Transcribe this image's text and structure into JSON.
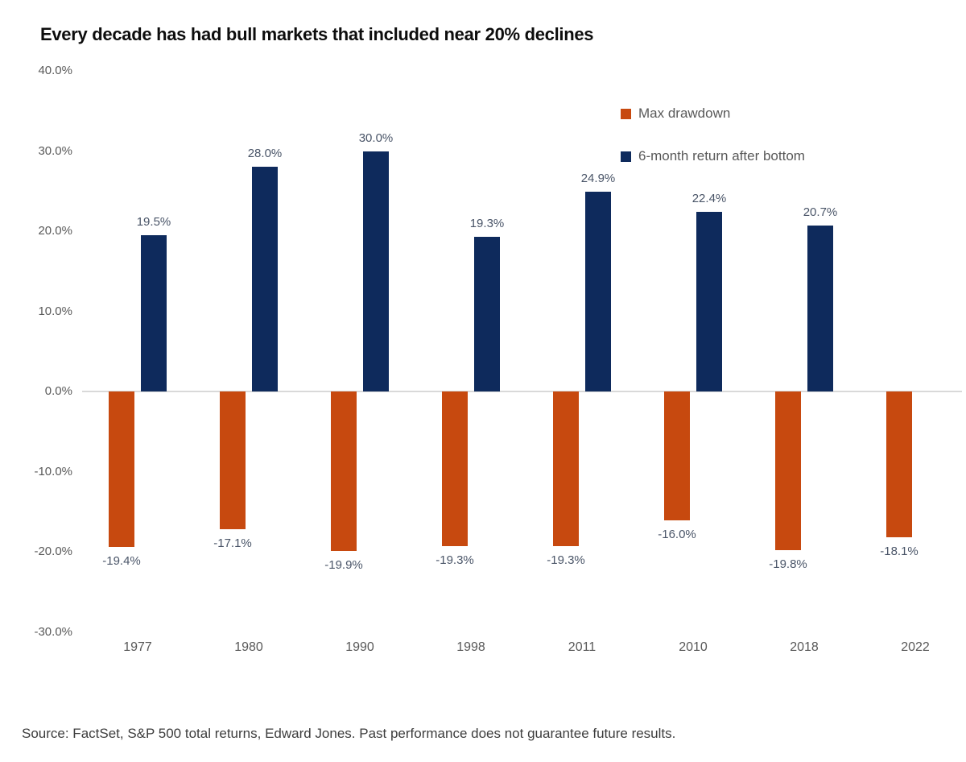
{
  "title": "Every decade has had bull markets that included near 20% declines",
  "source": "Source: FactSet, S&P 500 total returns, Edward Jones. Past performance does not guarantee future results.",
  "legend": {
    "items": [
      {
        "label": "Max drawdown",
        "color": "#c7490f"
      },
      {
        "label": "6-month return after bottom",
        "color": "#0e2a5c"
      }
    ]
  },
  "chart_data": {
    "type": "bar",
    "title": "Every decade has had bull markets that included near 20% declines",
    "categories": [
      "1977",
      "1980",
      "1990",
      "1998",
      "2011",
      "2010",
      "2018",
      "2022"
    ],
    "series": [
      {
        "name": "Max drawdown",
        "color": "#c7490f",
        "values": [
          -19.4,
          -17.1,
          -19.9,
          -19.3,
          -19.3,
          -16.0,
          -19.8,
          -18.1
        ]
      },
      {
        "name": "6-month return after bottom",
        "color": "#0e2a5c",
        "values": [
          19.5,
          28.0,
          30.0,
          19.3,
          24.9,
          22.4,
          20.7,
          null
        ]
      }
    ],
    "xlabel": "",
    "ylabel": "",
    "ylim": [
      -30,
      40
    ],
    "yticks": [
      "40.0%",
      "30.0%",
      "20.0%",
      "10.0%",
      "0.0%",
      "-10.0%",
      "-20.0%",
      "-30.0%"
    ],
    "grid": false,
    "gridlines": "zero-line-only",
    "legend_position": "top-right",
    "data_labels": "one-decimal-percent"
  },
  "colors": {
    "axis_text": "#595959",
    "value_label": "#4a5568",
    "zero_line": "#d9d9d9",
    "background": "#ffffff"
  }
}
